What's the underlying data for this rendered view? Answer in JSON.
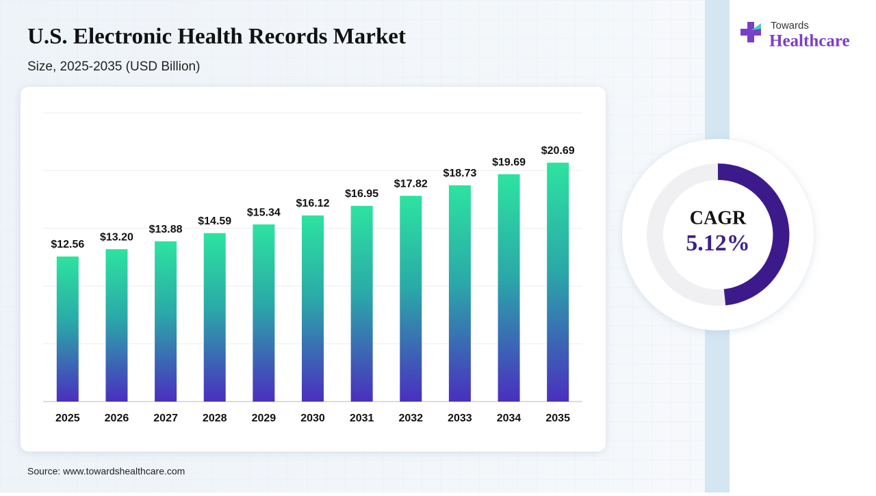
{
  "chart_data": {
    "type": "bar",
    "title": "U.S. Electronic Health Records Market",
    "subtitle": "Size, 2025-2035 (USD Billion)",
    "categories": [
      "2025",
      "2026",
      "2027",
      "2028",
      "2029",
      "2030",
      "2031",
      "2032",
      "2033",
      "2034",
      "2035"
    ],
    "values": [
      12.56,
      13.2,
      13.88,
      14.59,
      15.34,
      16.12,
      16.95,
      17.82,
      18.73,
      19.69,
      20.69
    ],
    "value_labels": [
      "$12.56",
      "$13.20",
      "$13.88",
      "$14.59",
      "$15.34",
      "$16.12",
      "$16.95",
      "$17.82",
      "$18.73",
      "$19.69",
      "$20.69"
    ],
    "color": [
      "#2de3a0",
      "#4a2fbf"
    ],
    "ylim": [
      0,
      25
    ],
    "yticks": [
      0,
      5,
      10,
      15,
      20,
      25
    ],
    "grid": true,
    "cagr": {
      "label": "CAGR",
      "value": "5.12%"
    },
    "source": "Source: www.towardshealthcare.com"
  },
  "logo": {
    "top": "Towards",
    "bottom": "Healthcare"
  }
}
